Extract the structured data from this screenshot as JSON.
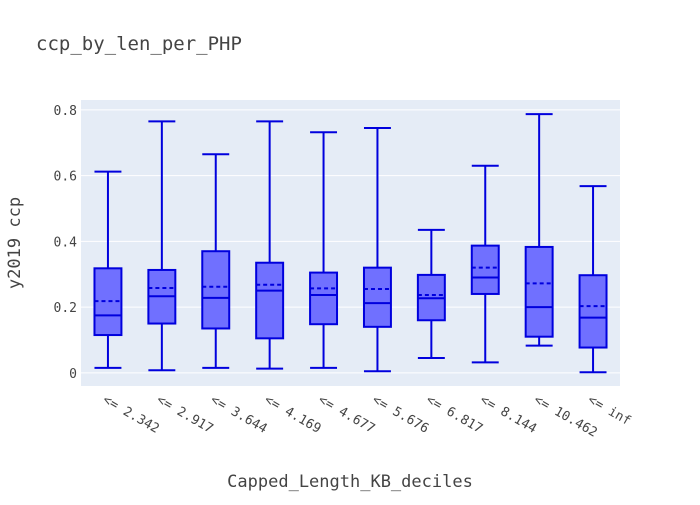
{
  "chart_data": {
    "type": "box",
    "title": "ccp_by_len_per_PHP",
    "xlabel": "Capped_Length_KB_deciles",
    "ylabel": "y2019 ccp",
    "ylim": [
      -0.04,
      0.83
    ],
    "yticks": [
      0,
      0.2,
      0.4,
      0.6,
      0.8
    ],
    "ytick_labels": [
      "0",
      "0.2",
      "0.4",
      "0.6",
      "0.8"
    ],
    "grid": true,
    "legend": "none",
    "categories": [
      "<= 2.342",
      "<= 2.917",
      "<= 3.644",
      "<= 4.169",
      "<= 4.677",
      "<= 5.676",
      "<= 6.817",
      "<= 8.144",
      "<= 10.462",
      "<= inf"
    ],
    "boxes": [
      {
        "min": 0.015,
        "q1": 0.115,
        "median": 0.175,
        "mean": 0.218,
        "q3": 0.318,
        "max": 0.612
      },
      {
        "min": 0.008,
        "q1": 0.15,
        "median": 0.233,
        "mean": 0.258,
        "q3": 0.313,
        "max": 0.765
      },
      {
        "min": 0.015,
        "q1": 0.135,
        "median": 0.228,
        "mean": 0.262,
        "q3": 0.37,
        "max": 0.665
      },
      {
        "min": 0.013,
        "q1": 0.105,
        "median": 0.25,
        "mean": 0.268,
        "q3": 0.335,
        "max": 0.765
      },
      {
        "min": 0.015,
        "q1": 0.148,
        "median": 0.237,
        "mean": 0.257,
        "q3": 0.305,
        "max": 0.732
      },
      {
        "min": 0.005,
        "q1": 0.14,
        "median": 0.212,
        "mean": 0.255,
        "q3": 0.32,
        "max": 0.745
      },
      {
        "min": 0.045,
        "q1": 0.16,
        "median": 0.227,
        "mean": 0.237,
        "q3": 0.298,
        "max": 0.435
      },
      {
        "min": 0.032,
        "q1": 0.24,
        "median": 0.29,
        "mean": 0.32,
        "q3": 0.387,
        "max": 0.63
      },
      {
        "min": 0.083,
        "q1": 0.11,
        "median": 0.2,
        "mean": 0.272,
        "q3": 0.383,
        "max": 0.787
      },
      {
        "min": 0.002,
        "q1": 0.077,
        "median": 0.168,
        "mean": 0.203,
        "q3": 0.297,
        "max": 0.568
      }
    ],
    "colors": {
      "plot_background": "#e5ecf6",
      "box_fill": "#7070ff",
      "box_line": "#0000dd",
      "text": "#444444",
      "grid": "#ffffff"
    }
  }
}
